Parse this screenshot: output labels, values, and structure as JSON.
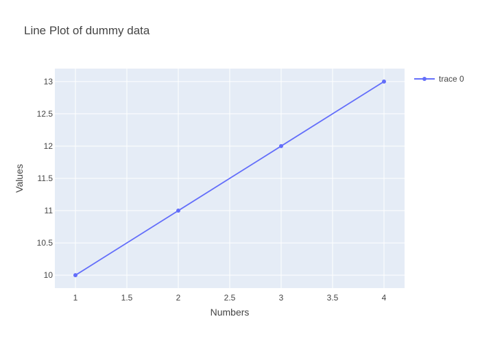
{
  "chart_data": {
    "type": "line",
    "title": "Line Plot of dummy data",
    "xlabel": "Numbers",
    "ylabel": "Values",
    "x": [
      1,
      2,
      3,
      4
    ],
    "series": [
      {
        "name": "trace 0",
        "values": [
          10,
          11,
          12,
          13
        ],
        "color": "#636efa",
        "mode": "lines+markers"
      }
    ],
    "xlim": [
      0.8,
      4.2
    ],
    "ylim": [
      9.8,
      13.2
    ],
    "x_ticks": [
      1,
      1.5,
      2,
      2.5,
      3,
      3.5,
      4
    ],
    "x_tick_labels": [
      "1",
      "1.5",
      "2",
      "2.5",
      "3",
      "3.5",
      "4"
    ],
    "y_ticks": [
      10,
      10.5,
      11,
      11.5,
      12,
      12.5,
      13
    ],
    "y_tick_labels": [
      "10",
      "10.5",
      "11",
      "11.5",
      "12",
      "12.5",
      "13"
    ],
    "grid": true,
    "legend_position": "top-right",
    "plot_background": "#e5ecf6",
    "grid_color": "#ffffff"
  }
}
